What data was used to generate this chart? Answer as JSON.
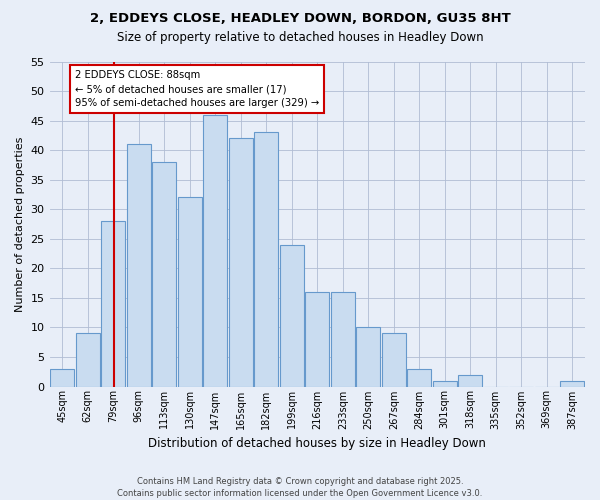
{
  "title1": "2, EDDEYS CLOSE, HEADLEY DOWN, BORDON, GU35 8HT",
  "title2": "Size of property relative to detached houses in Headley Down",
  "xlabel": "Distribution of detached houses by size in Headley Down",
  "ylabel": "Number of detached properties",
  "categories": [
    "45sqm",
    "62sqm",
    "79sqm",
    "96sqm",
    "113sqm",
    "130sqm",
    "147sqm",
    "165sqm",
    "182sqm",
    "199sqm",
    "216sqm",
    "233sqm",
    "250sqm",
    "267sqm",
    "284sqm",
    "301sqm",
    "318sqm",
    "335sqm",
    "352sqm",
    "369sqm",
    "387sqm"
  ],
  "values": [
    3,
    9,
    28,
    41,
    38,
    32,
    46,
    42,
    43,
    24,
    16,
    16,
    10,
    9,
    3,
    1,
    2,
    0,
    0,
    0,
    1
  ],
  "bar_color": "#c9dcf0",
  "bar_edge_color": "#6699cc",
  "annotation_text": "2 EDDEYS CLOSE: 88sqm\n← 5% of detached houses are smaller (17)\n95% of semi-detached houses are larger (329) →",
  "annotation_box_color": "#ffffff",
  "annotation_box_edge_color": "#cc0000",
  "vline_color": "#cc0000",
  "ylim": [
    0,
    55
  ],
  "yticks": [
    0,
    5,
    10,
    15,
    20,
    25,
    30,
    35,
    40,
    45,
    50,
    55
  ],
  "bg_color": "#e8eef8",
  "footer1": "Contains HM Land Registry data © Crown copyright and database right 2025.",
  "footer2": "Contains public sector information licensed under the Open Government Licence v3.0."
}
